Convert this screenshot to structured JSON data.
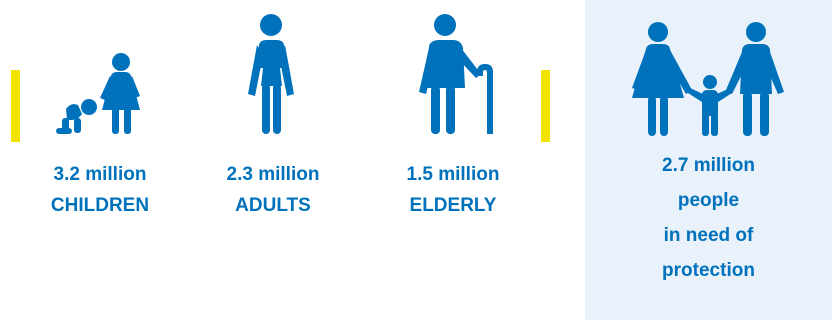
{
  "colors": {
    "primary": "#0072bc",
    "divider": "#f2e400",
    "panel_bg": "#e9f1fa",
    "background": "#ffffff"
  },
  "groups": [
    {
      "value": "3.2 million",
      "label": "CHILDREN",
      "icon": "children-icon"
    },
    {
      "value": "2.3 million",
      "label": "ADULTS",
      "icon": "adult-icon"
    },
    {
      "value": "1.5 million",
      "label": "ELDERLY",
      "icon": "elderly-icon"
    }
  ],
  "protection": {
    "icon": "family-icon",
    "lines": [
      "2.7 million",
      "people",
      "in need of",
      "protection"
    ]
  }
}
